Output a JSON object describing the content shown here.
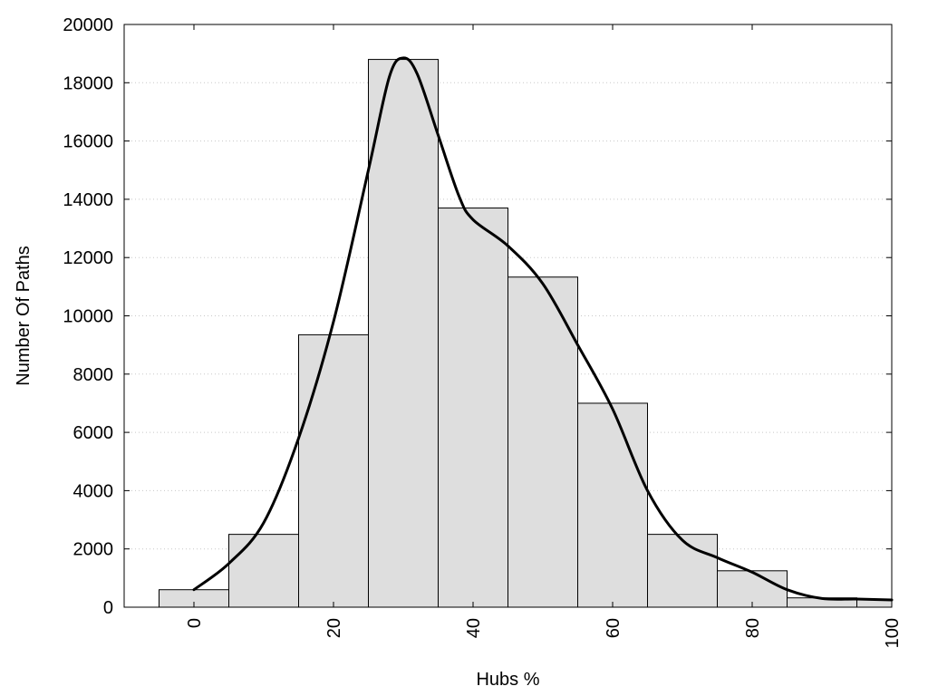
{
  "chart_data": {
    "type": "bar",
    "title": "",
    "xlabel": "Hubs %",
    "ylabel": "Number Of Paths",
    "xlim": [
      -10,
      100
    ],
    "ylim": [
      0,
      20000
    ],
    "grid": true,
    "x_ticks": [
      0,
      20,
      40,
      60,
      80,
      100
    ],
    "y_ticks": [
      0,
      2000,
      4000,
      6000,
      8000,
      10000,
      12000,
      14000,
      16000,
      18000,
      20000
    ],
    "bin_width": 10,
    "bins": [
      {
        "center": 0,
        "value": 600
      },
      {
        "center": 10,
        "value": 2500
      },
      {
        "center": 20,
        "value": 9350
      },
      {
        "center": 30,
        "value": 18800
      },
      {
        "center": 40,
        "value": 13700
      },
      {
        "center": 50,
        "value": 11330
      },
      {
        "center": 60,
        "value": 7000
      },
      {
        "center": 70,
        "value": 2500
      },
      {
        "center": 80,
        "value": 1250
      },
      {
        "center": 90,
        "value": 320
      },
      {
        "center": 100,
        "value": 250
      }
    ],
    "density_curve": {
      "x": [
        0,
        5,
        10,
        15,
        20,
        25,
        28,
        30,
        32,
        35,
        38,
        40,
        45,
        50,
        55,
        60,
        65,
        70,
        75,
        80,
        85,
        90,
        95,
        100
      ],
      "y": [
        600,
        1500,
        2900,
        5800,
        9800,
        15000,
        18200,
        18850,
        18300,
        16200,
        14100,
        13300,
        12400,
        11100,
        9000,
        6800,
        4000,
        2300,
        1700,
        1200,
        600,
        300,
        280,
        250
      ]
    }
  }
}
